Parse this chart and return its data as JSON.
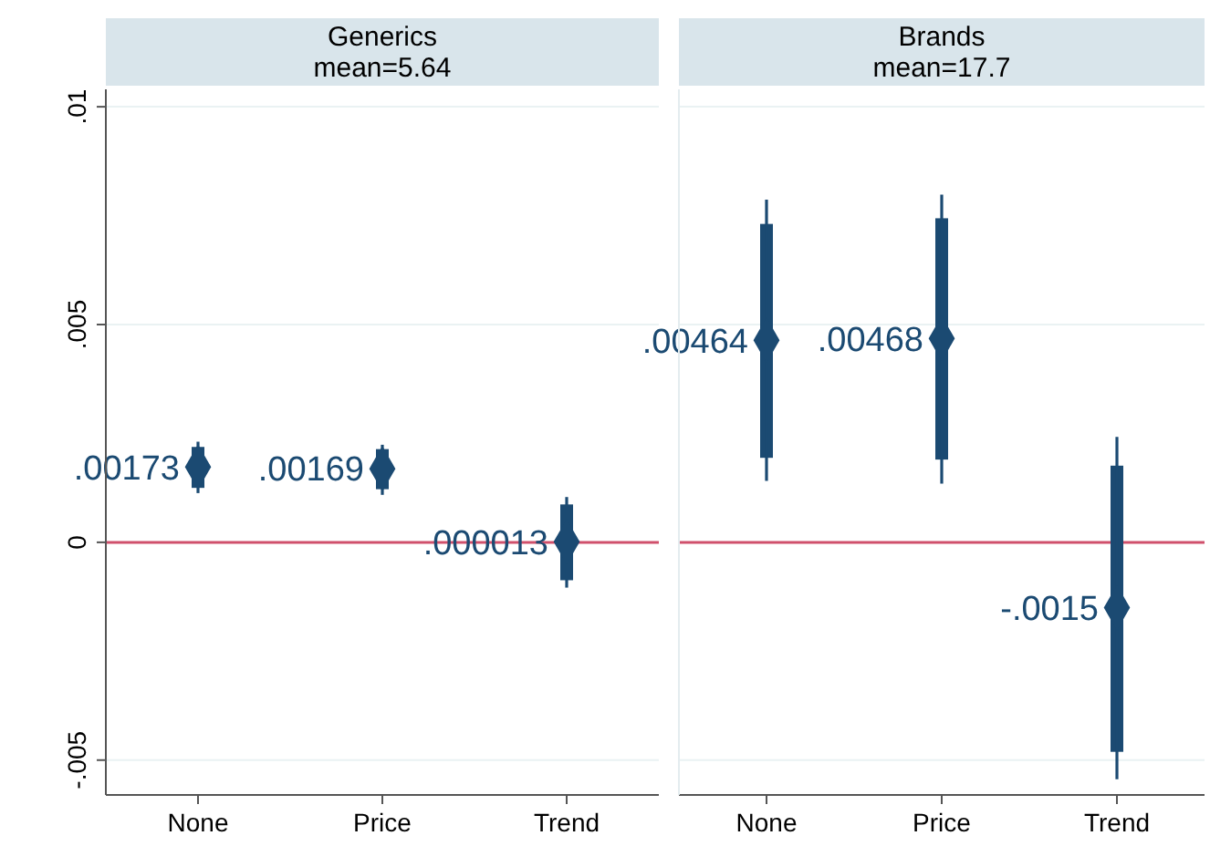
{
  "chart_data": [
    {
      "type": "scatter",
      "title": "Generics",
      "subtitle": "mean=5.64",
      "categories": [
        "None",
        "Price",
        "Trend"
      ],
      "ylim": [
        -0.0058,
        0.0104
      ],
      "yticks": [
        {
          "value": -0.005,
          "label": "-.005"
        },
        {
          "value": 0,
          "label": "0"
        },
        {
          "value": 0.005,
          "label": ".005"
        },
        {
          "value": 0.01,
          "label": ".01"
        }
      ],
      "grid": "y",
      "ref_lines": [
        {
          "axis": "y",
          "value": 0,
          "color": "#d0506c"
        }
      ],
      "series": [
        {
          "type": "bar",
          "color": "#1b4a72",
          "base": [
            0.00125,
            0.00122,
            -0.00087
          ],
          "values": [
            0.00094,
            0.00092,
            0.00174
          ]
        },
        {
          "color": "#1b4a72",
          "marker": "diamond",
          "values": [
            0.00173,
            0.00169,
            1.3e-05
          ],
          "errors": [
            [
              0.00113,
              0.00231
            ],
            [
              0.00109,
              0.00224
            ],
            [
              -0.00104,
              0.00104
            ]
          ],
          "value_labels": [
            ".00173",
            ".00169",
            ".000013"
          ]
        }
      ]
    },
    {
      "type": "scatter",
      "title": "Brands",
      "subtitle": "mean=17.7",
      "categories": [
        "None",
        "Price",
        "Trend"
      ],
      "ylim": [
        -0.0058,
        0.0104
      ],
      "yticks": [
        {
          "value": -0.005,
          "label": null
        },
        {
          "value": 0,
          "label": null
        },
        {
          "value": 0.005,
          "label": null
        },
        {
          "value": 0.01,
          "label": null
        }
      ],
      "grid": "y",
      "tick_labels": "x",
      "ref_lines": [
        {
          "axis": "y",
          "value": 0,
          "color": "#d0506c"
        }
      ],
      "series": [
        {
          "type": "bar",
          "color": "#1b4a72",
          "base": [
            0.00194,
            0.0019,
            -0.00481
          ],
          "values": [
            0.00537,
            0.00554,
            0.00657
          ]
        },
        {
          "color": "#1b4a72",
          "marker": "diamond",
          "values": [
            0.00464,
            0.00468,
            -0.0015
          ],
          "errors": [
            [
              0.00141,
              0.00787
            ],
            [
              0.00135,
              0.00798
            ],
            [
              -0.00544,
              0.00242
            ]
          ],
          "value_labels": [
            ".00464",
            ".00468",
            "-.0015"
          ]
        }
      ]
    }
  ]
}
